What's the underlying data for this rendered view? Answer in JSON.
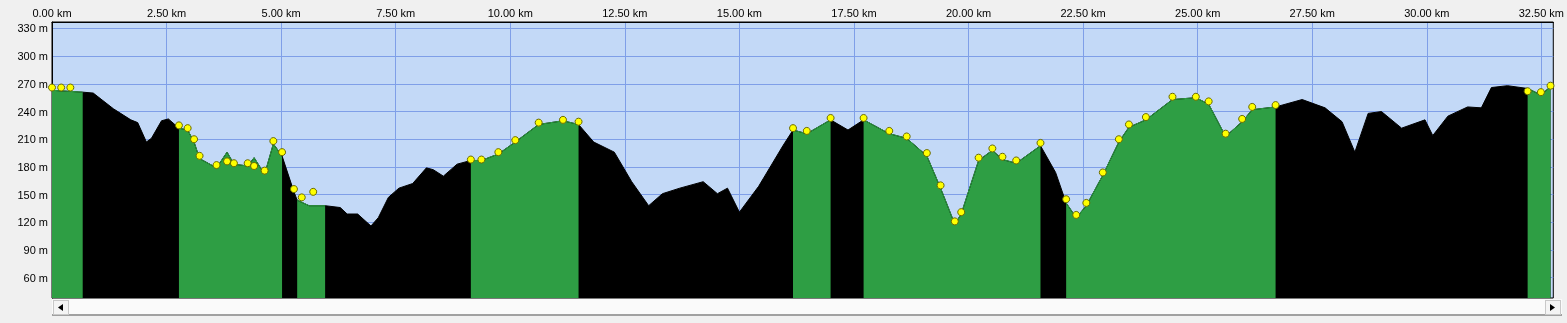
{
  "chart_data": {
    "type": "area",
    "grid": true,
    "xlim": [
      0,
      32.76
    ],
    "ylim": [
      38,
      337
    ],
    "xticks": [
      {
        "value": 0,
        "label": "0.00 km"
      },
      {
        "value": 2.5,
        "label": "2.50 km"
      },
      {
        "value": 5,
        "label": "5.00 km"
      },
      {
        "value": 7.5,
        "label": "7.50 km"
      },
      {
        "value": 10,
        "label": "10.00 km"
      },
      {
        "value": 12.5,
        "label": "12.50 km"
      },
      {
        "value": 15,
        "label": "15.00 km"
      },
      {
        "value": 17.5,
        "label": "17.50 km"
      },
      {
        "value": 20,
        "label": "20.00 km"
      },
      {
        "value": 22.5,
        "label": "22.50 km"
      },
      {
        "value": 25,
        "label": "25.00 km"
      },
      {
        "value": 27.5,
        "label": "27.50 km"
      },
      {
        "value": 30,
        "label": "30.00 km"
      },
      {
        "value": 32.5,
        "label": "32.50 km"
      }
    ],
    "yticks": [
      {
        "value": 60,
        "label": "60 m"
      },
      {
        "value": 90,
        "label": "90 m"
      },
      {
        "value": 120,
        "label": "120 m"
      },
      {
        "value": 150,
        "label": "150 m"
      },
      {
        "value": 180,
        "label": "180 m"
      },
      {
        "value": 210,
        "label": "210 m"
      },
      {
        "value": 240,
        "label": "240 m"
      },
      {
        "value": 270,
        "label": "270 m"
      },
      {
        "value": 300,
        "label": "300 m"
      },
      {
        "value": 330,
        "label": "330 m"
      }
    ],
    "series": [
      {
        "color": "#000000",
        "x": [
          0,
          0.67,
          0.9,
          1.34,
          1.72,
          1.87,
          2.06,
          2.17,
          2.39,
          2.54,
          2.77,
          2.96,
          3.1,
          3.22,
          3.59,
          3.82,
          3.97,
          4.27,
          4.41,
          4.64,
          4.83,
          5.02,
          5.28,
          5.35,
          5.61,
          5.96,
          6.29,
          6.44,
          6.67,
          6.96,
          7.12,
          7.34,
          7.57,
          7.87,
          8.17,
          8.32,
          8.54,
          8.84,
          9.14,
          9.37,
          9.74,
          10.11,
          10.62,
          11.15,
          11.49,
          11.82,
          12.27,
          12.65,
          13.02,
          13.32,
          13.7,
          14.21,
          14.52,
          14.74,
          15.0,
          15.42,
          15.95,
          16.17,
          16.47,
          16.99,
          17.37,
          17.71,
          18.27,
          18.65,
          19.09,
          19.39,
          19.7,
          19.84,
          20.22,
          20.52,
          20.74,
          21.04,
          21.57,
          21.9,
          22.13,
          22.35,
          22.57,
          22.93,
          23.28,
          23.5,
          23.87,
          24.45,
          24.96,
          25.24,
          25.61,
          25.97,
          26.19,
          26.7,
          27.28,
          27.78,
          28.15,
          28.43,
          28.72,
          29.01,
          29.45,
          29.96,
          30.13,
          30.46,
          30.89,
          31.19,
          31.41,
          31.76,
          32.2,
          32.49,
          32.7
        ],
        "values": [
          263,
          261,
          260,
          243,
          231,
          228,
          207,
          211,
          230,
          232,
          222,
          220,
          207,
          189,
          179,
          196,
          183,
          181,
          190,
          172,
          205,
          192,
          153,
          144,
          138,
          138,
          136,
          129,
          129,
          116,
          125,
          147,
          157,
          162,
          179,
          177,
          170,
          183,
          187,
          187,
          194,
          207,
          226,
          230,
          226,
          207,
          196,
          164,
          138,
          151,
          157,
          164,
          151,
          157,
          131,
          159,
          203,
          220,
          216,
          231,
          220,
          231,
          216,
          211,
          192,
          157,
          118,
          129,
          187,
          198,
          188,
          184,
          203,
          174,
          141,
          125,
          138,
          171,
          207,
          223,
          231,
          253,
          255,
          248,
          213,
          229,
          242,
          245,
          253,
          244,
          229,
          196,
          238,
          240,
          222,
          231,
          214,
          235,
          245,
          244,
          266,
          268,
          265,
          258,
          267
        ]
      },
      {
        "type": "area",
        "color": "#2e9e44",
        "x": [
          0,
          0.67,
          1.5,
          2.77,
          2.96,
          3.1,
          3.22,
          3.59,
          3.82,
          3.97,
          4.27,
          4.41,
          4.64,
          4.83,
          5.02,
          5.2,
          5.35,
          5.61,
          5.96,
          7.5,
          9.14,
          9.37,
          9.74,
          10.11,
          10.62,
          11.15,
          11.49,
          13.5,
          16.17,
          16.47,
          16.99,
          17.3,
          17.71,
          18.27,
          18.65,
          19.09,
          19.39,
          19.7,
          19.84,
          20.22,
          20.52,
          20.74,
          21.04,
          21.57,
          21.75,
          22.13,
          22.35,
          22.57,
          22.93,
          23.28,
          23.5,
          23.87,
          24.45,
          24.96,
          25.24,
          25.61,
          25.97,
          26.19,
          26.7,
          29.5,
          32.2,
          32.49,
          32.7
        ],
        "values": [
          263,
          261,
          null,
          222,
          220,
          207,
          189,
          179,
          196,
          183,
          181,
          190,
          172,
          205,
          192,
          null,
          144,
          138,
          138,
          null,
          187,
          187,
          194,
          207,
          226,
          230,
          226,
          null,
          220,
          216,
          231,
          null,
          231,
          216,
          211,
          192,
          157,
          118,
          129,
          187,
          198,
          188,
          184,
          203,
          null,
          141,
          125,
          138,
          171,
          207,
          223,
          231,
          253,
          255,
          248,
          213,
          229,
          242,
          245,
          null,
          265,
          258,
          267
        ]
      },
      {
        "type": "scatter",
        "color": "#ffff00",
        "x": [
          0,
          0.2,
          0.4,
          2.77,
          2.96,
          3.1,
          3.22,
          3.59,
          3.82,
          3.97,
          4.27,
          4.41,
          4.64,
          4.83,
          5.02,
          5.28,
          5.45,
          5.7,
          9.14,
          9.37,
          9.74,
          10.11,
          10.62,
          11.15,
          11.49,
          16.17,
          16.47,
          16.99,
          17.71,
          18.27,
          18.65,
          19.09,
          19.39,
          19.7,
          19.84,
          20.22,
          20.52,
          20.74,
          21.04,
          21.57,
          22.13,
          22.35,
          22.57,
          22.93,
          23.28,
          23.5,
          23.87,
          24.45,
          24.96,
          25.24,
          25.61,
          25.97,
          26.19,
          26.7,
          32.2,
          32.49,
          32.7
        ],
        "values": [
          266,
          266,
          266,
          225,
          222,
          210,
          192,
          182,
          186,
          184,
          184,
          181,
          176,
          208,
          196,
          156,
          147,
          153,
          188,
          188,
          196,
          209,
          228,
          231,
          229,
          222,
          219,
          233,
          233,
          219,
          213,
          195,
          160,
          121,
          131,
          190,
          200,
          191,
          187,
          206,
          145,
          128,
          141,
          174,
          210,
          226,
          234,
          256,
          256,
          251,
          216,
          232,
          245,
          247,
          262,
          261,
          268
        ]
      }
    ]
  }
}
